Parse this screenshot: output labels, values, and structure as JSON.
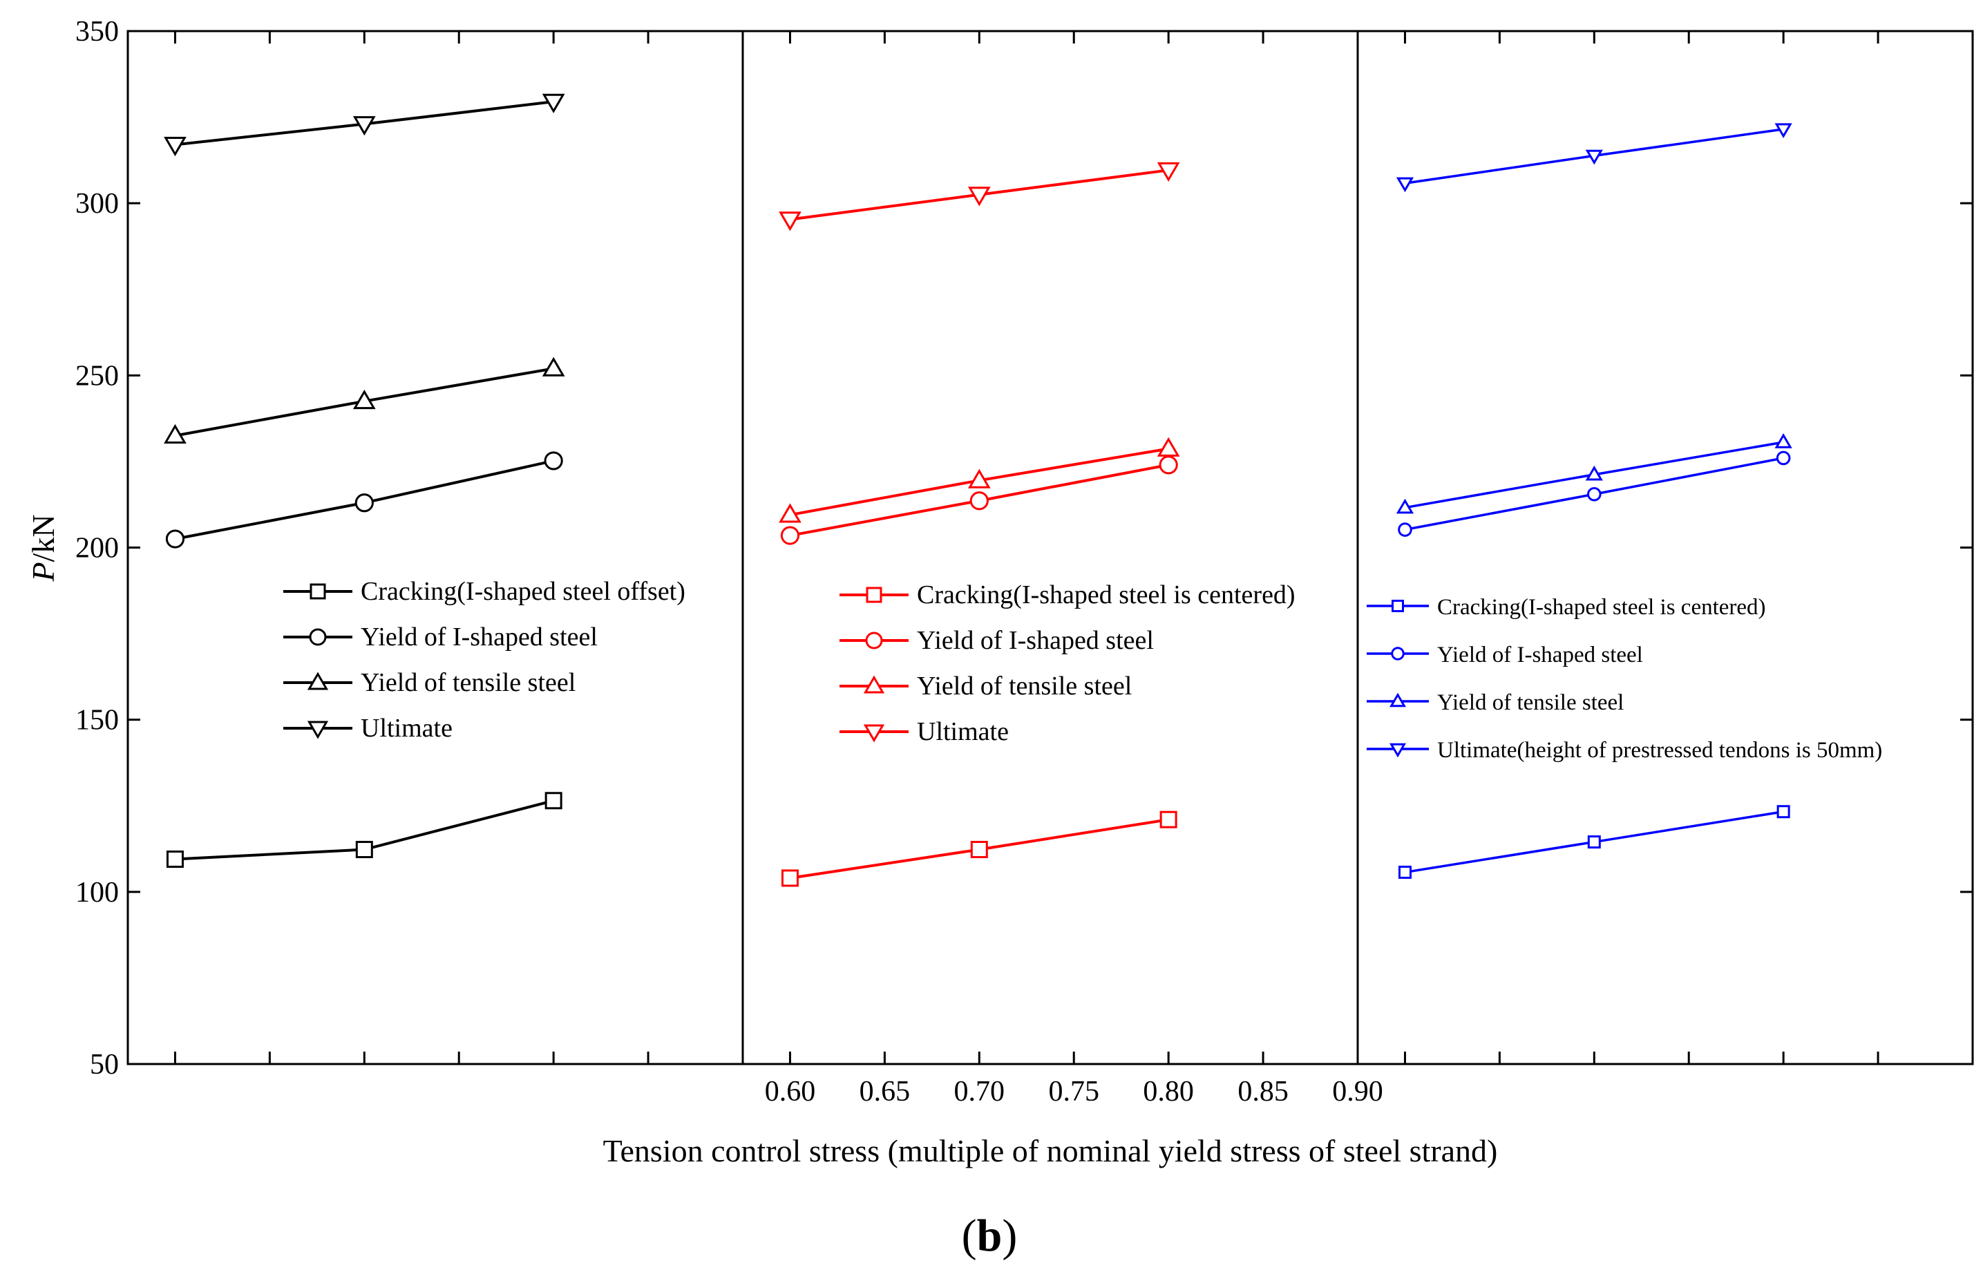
{
  "chart_data": {
    "type": "line",
    "caption": {
      "open": "(",
      "letter": "b",
      "close": ")"
    },
    "ylabel": {
      "italic": "P",
      "rest": "/kN"
    },
    "xlabel": "Tension control stress (multiple of nominal yield stress of steel strand)",
    "ylim": [
      50,
      350
    ],
    "yticks": [
      "50",
      "100",
      "150",
      "200",
      "250",
      "300",
      "350"
    ],
    "xlim": [
      0.575,
      0.9
    ],
    "xticks": [
      "0.60",
      "0.65",
      "0.70",
      "0.75",
      "0.80",
      "0.85",
      "0.90"
    ],
    "x": [
      0.6,
      0.7,
      0.8
    ],
    "panels": [
      {
        "name": "I-shaped steel offset",
        "color": "#000000",
        "series": [
          {
            "name": "Cracking(I-shaped steel offset)",
            "marker": "square",
            "values": [
              109.5,
              112.3,
              126.5
            ]
          },
          {
            "name": "Yield of I-shaped steel",
            "marker": "circle",
            "values": [
              202.5,
              213,
              225.2
            ]
          },
          {
            "name": "Yield of tensile steel",
            "marker": "triangle-up",
            "values": [
              232.5,
              242.5,
              252
            ]
          },
          {
            "name": "Ultimate",
            "marker": "triangle-down",
            "values": [
              317,
              323,
              329.5
            ]
          }
        ]
      },
      {
        "name": "I-shaped steel is centered",
        "color": "#ff0000",
        "series": [
          {
            "name": "Cracking(I-shaped steel is centered)",
            "marker": "square",
            "values": [
              104,
              112.3,
              121
            ]
          },
          {
            "name": "Yield of I-shaped steel",
            "marker": "circle",
            "values": [
              203.5,
              213.6,
              224
            ]
          },
          {
            "name": "Yield of tensile steel",
            "marker": "triangle-up",
            "values": [
              209.5,
              219.5,
              228.7
            ]
          },
          {
            "name": "Ultimate",
            "marker": "triangle-down",
            "values": [
              295.3,
              302.5,
              309.6
            ]
          }
        ]
      },
      {
        "name": "height of prestressed tendons is 50mm",
        "color": "#0000ff",
        "series": [
          {
            "name": "Cracking(I-shaped steel is centered)",
            "marker": "square",
            "values": [
              105.7,
              114.5,
              123.3
            ]
          },
          {
            "name": "Yield of I-shaped steel",
            "marker": "circle",
            "values": [
              205.2,
              215.5,
              226
            ]
          },
          {
            "name": "Yield of tensile steel",
            "marker": "triangle-up",
            "values": [
              211.6,
              221.2,
              230.6
            ]
          },
          {
            "name": "Ultimate(height of prestressed tendons is 50mm)",
            "marker": "triangle-down",
            "values": [
              305.8,
              313.8,
              321.5
            ]
          }
        ]
      }
    ]
  }
}
